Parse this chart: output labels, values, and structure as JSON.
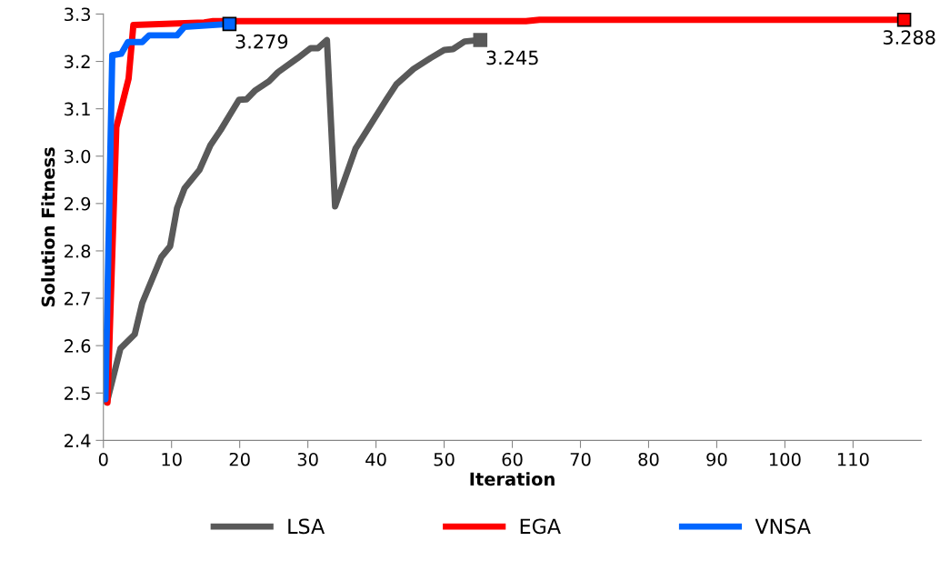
{
  "chart_data": {
    "type": "line",
    "xlabel": "Iteration",
    "ylabel": "Solution Fitness",
    "xlim": [
      0,
      120
    ],
    "xticks": [
      0,
      10,
      20,
      30,
      40,
      50,
      60,
      70,
      80,
      90,
      100,
      110
    ],
    "ylim": [
      2.4,
      3.3
    ],
    "yticks": [
      2.4,
      2.5,
      2.6,
      2.7,
      2.8,
      2.9,
      {
        "value": 3.0,
        "label": "3.0"
      },
      3.1,
      3.2,
      3.3
    ],
    "grid": false,
    "legend": "bottom",
    "series": [
      {
        "name": "LSA",
        "color": "#595959",
        "x": [
          0.5,
          2.5,
          4.6,
          5.7,
          8.5,
          9.8,
          10.8,
          11.9,
          14.1,
          15.7,
          17.2,
          19.9,
          21,
          22.3,
          24.3,
          25.6,
          28.5,
          30.4,
          31.5,
          32.8,
          34,
          37,
          41.5,
          43,
          45.5,
          48,
          50,
          51.3,
          53,
          55.3
        ],
        "values": [
          2.48,
          2.594,
          2.624,
          2.69,
          2.787,
          2.81,
          2.89,
          2.932,
          2.971,
          3.023,
          3.055,
          3.119,
          3.12,
          3.139,
          3.158,
          3.177,
          3.207,
          3.228,
          3.228,
          3.245,
          2.894,
          3.016,
          3.119,
          3.152,
          3.184,
          3.207,
          3.224,
          3.226,
          3.242,
          3.245
        ]
      },
      {
        "name": "EGA",
        "color": "#ff0000",
        "x": [
          0.6,
          1.9,
          3.7,
          4.4,
          14.8,
          16.1,
          62,
          64,
          117.5
        ],
        "values": [
          2.48,
          3.061,
          3.164,
          3.277,
          3.282,
          3.285,
          3.285,
          3.288,
          3.288
        ]
      },
      {
        "name": "VNSA",
        "color": "#0066ff",
        "x": [
          0.3,
          1.3,
          2.6,
          3.6,
          5.7,
          6.7,
          10.8,
          11.9,
          18.5
        ],
        "values": [
          2.487,
          3.213,
          3.216,
          3.241,
          3.241,
          3.255,
          3.255,
          3.273,
          3.279
        ]
      }
    ],
    "annotations": [
      {
        "text": "3.279",
        "x": 18.5,
        "y": 3.279
      },
      {
        "text": "3.245",
        "x": 55.3,
        "y": 3.245
      },
      {
        "text": "3.288",
        "x": 117.5,
        "y": 3.288
      }
    ]
  }
}
